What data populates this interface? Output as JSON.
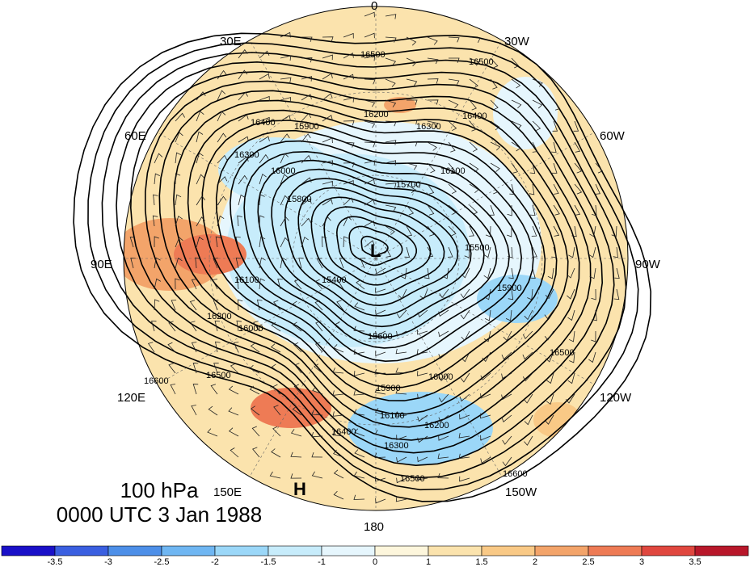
{
  "map": {
    "title_lines": [
      "100 hPa",
      "0000 UTC 3 Jan 1988"
    ],
    "longitude_labels": {
      "top": "0",
      "bottom": "180",
      "left": "90E",
      "right": "90W",
      "upper_left_30": "30E",
      "upper_right_30": "30W",
      "upper_left_60": "60E",
      "upper_right_60": "60W",
      "lower_left_120": "120E",
      "lower_right_120": "120W",
      "lower_left_150": "150E",
      "lower_right_150": "150W"
    },
    "pressure_centers": [
      {
        "label": "L",
        "kind": "low"
      },
      {
        "label": "H",
        "kind": "high"
      }
    ],
    "contour_labels": [
      "16500",
      "16500",
      "16400",
      "16300",
      "16200",
      "16100",
      "16000",
      "15900",
      "15800",
      "15700",
      "15600",
      "15500",
      "15400",
      "16400",
      "16300",
      "16200",
      "16100",
      "16000",
      "15900",
      "16500",
      "16600",
      "16500",
      "16400",
      "16300",
      "16200",
      "16100",
      "15900",
      "16000",
      "16500",
      "16600"
    ]
  },
  "colorbar": {
    "colors": [
      "#1a10c8",
      "#3a5fe0",
      "#4d8fe8",
      "#6fb6f2",
      "#9bd7f8",
      "#c7ecfb",
      "#e6f6fd",
      "#fdf6dc",
      "#fbe3ad",
      "#f9c986",
      "#f3a46a",
      "#ee7b55",
      "#e0473f",
      "#b8172a"
    ],
    "tick_labels": [
      "-3.5",
      "-3",
      "-2.5",
      "-2",
      "-1.5",
      "-1",
      "0",
      "1",
      "1.5",
      "2",
      "2.5",
      "3",
      "3.5"
    ]
  }
}
